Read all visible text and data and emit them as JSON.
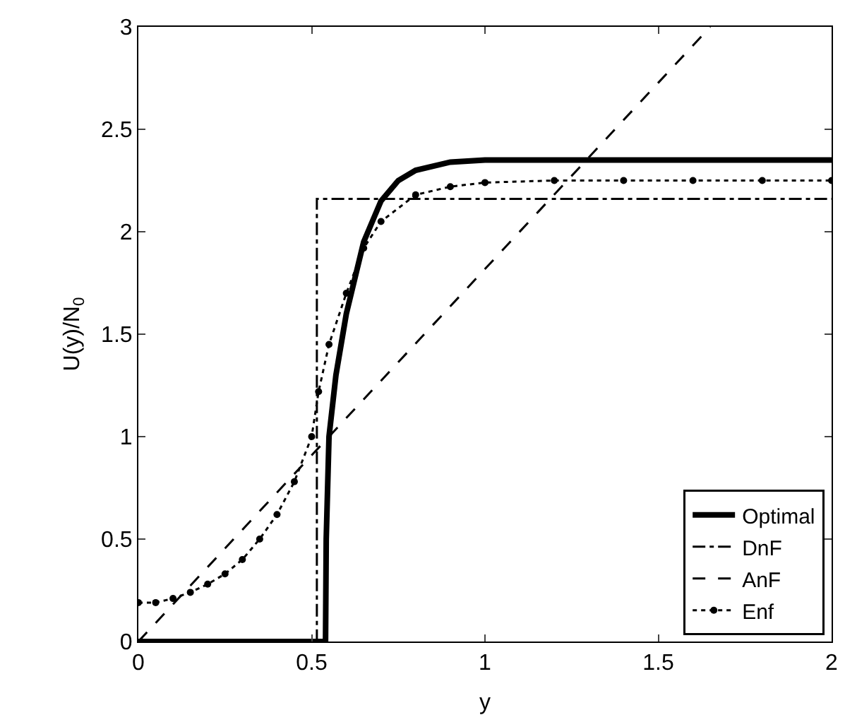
{
  "chart_data": {
    "type": "line",
    "xlabel": "y",
    "ylabel": "U(y)/N$_{0}$",
    "xlim": [
      0,
      2
    ],
    "ylim": [
      0,
      3
    ],
    "xticks": [
      0,
      0.5,
      1,
      1.5,
      2
    ],
    "yticks": [
      0,
      0.5,
      1,
      1.5,
      2,
      2.5,
      3
    ],
    "grid": false,
    "legend": "bottom right",
    "series": [
      {
        "name": "Optimal",
        "color": "#000000",
        "line_style": "solid",
        "marker": "none",
        "x": [
          0,
          0.54,
          0.542,
          0.55,
          0.57,
          0.6,
          0.65,
          0.7,
          0.75,
          0.8,
          0.9,
          1.0,
          2.0
        ],
        "values": [
          0,
          0,
          0.5,
          1.0,
          1.3,
          1.6,
          1.95,
          2.15,
          2.25,
          2.3,
          2.34,
          2.35,
          2.35
        ]
      },
      {
        "name": "DnF",
        "color": "#000000",
        "line_style": "dashdot",
        "marker": "none",
        "x": [
          0,
          0.515,
          0.515,
          2
        ],
        "values": [
          0,
          0,
          2.16,
          2.16
        ]
      },
      {
        "name": "AnF",
        "color": "#000000",
        "line_style": "dashed",
        "marker": "none",
        "x": [
          0,
          1.65
        ],
        "values": [
          0,
          3
        ]
      },
      {
        "name": "Enf",
        "color": "#000000",
        "line_style": "dotted",
        "marker": "circle",
        "x": [
          0,
          0.05,
          0.1,
          0.15,
          0.2,
          0.25,
          0.3,
          0.35,
          0.4,
          0.45,
          0.5,
          0.52,
          0.55,
          0.6,
          0.65,
          0.7,
          0.8,
          0.9,
          1.0,
          1.2,
          1.4,
          1.6,
          1.8,
          2.0
        ],
        "values": [
          0.19,
          0.19,
          0.21,
          0.24,
          0.28,
          0.33,
          0.4,
          0.5,
          0.62,
          0.78,
          1.0,
          1.22,
          1.45,
          1.7,
          1.92,
          2.05,
          2.18,
          2.22,
          2.24,
          2.25,
          2.25,
          2.25,
          2.25,
          2.25
        ]
      }
    ]
  }
}
